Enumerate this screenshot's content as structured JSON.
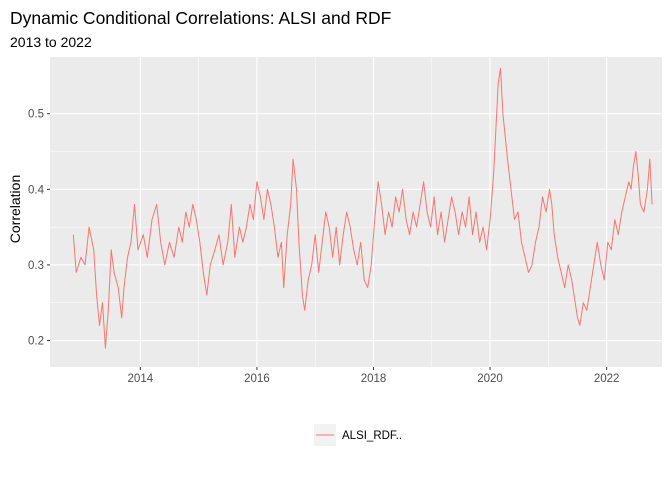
{
  "chart_data": {
    "type": "line",
    "title": "Dynamic Conditional Correlations: ALSI and RDF",
    "subtitle": "2013 to 2022",
    "xlabel": "",
    "ylabel": "Correlation",
    "xlim": [
      2012.45,
      2022.95
    ],
    "ylim": [
      0.165,
      0.575
    ],
    "x_ticks": [
      2014,
      2016,
      2018,
      2020,
      2022
    ],
    "x_tick_labels": [
      "2014",
      "2016",
      "2018",
      "2020",
      "2022"
    ],
    "y_ticks": [
      0.2,
      0.3,
      0.4,
      0.5
    ],
    "y_tick_labels": [
      "0.2",
      "0.3",
      "0.4",
      "0.5"
    ],
    "grid": true,
    "legend_position": "bottom",
    "series": [
      {
        "name": "ALSI_RDF..",
        "color": "#f8766d",
        "points": [
          [
            2012.85,
            0.34
          ],
          [
            2012.9,
            0.29
          ],
          [
            2012.98,
            0.31
          ],
          [
            2013.05,
            0.3
          ],
          [
            2013.12,
            0.35
          ],
          [
            2013.2,
            0.32
          ],
          [
            2013.25,
            0.26
          ],
          [
            2013.3,
            0.22
          ],
          [
            2013.35,
            0.25
          ],
          [
            2013.4,
            0.19
          ],
          [
            2013.45,
            0.24
          ],
          [
            2013.5,
            0.32
          ],
          [
            2013.55,
            0.29
          ],
          [
            2013.62,
            0.27
          ],
          [
            2013.68,
            0.23
          ],
          [
            2013.72,
            0.27
          ],
          [
            2013.78,
            0.31
          ],
          [
            2013.84,
            0.33
          ],
          [
            2013.9,
            0.38
          ],
          [
            2013.96,
            0.32
          ],
          [
            2014.05,
            0.34
          ],
          [
            2014.12,
            0.31
          ],
          [
            2014.2,
            0.36
          ],
          [
            2014.28,
            0.38
          ],
          [
            2014.35,
            0.33
          ],
          [
            2014.42,
            0.3
          ],
          [
            2014.5,
            0.33
          ],
          [
            2014.58,
            0.31
          ],
          [
            2014.66,
            0.35
          ],
          [
            2014.72,
            0.33
          ],
          [
            2014.78,
            0.37
          ],
          [
            2014.84,
            0.35
          ],
          [
            2014.9,
            0.38
          ],
          [
            2014.96,
            0.36
          ],
          [
            2015.02,
            0.33
          ],
          [
            2015.08,
            0.29
          ],
          [
            2015.14,
            0.26
          ],
          [
            2015.2,
            0.3
          ],
          [
            2015.28,
            0.32
          ],
          [
            2015.35,
            0.34
          ],
          [
            2015.42,
            0.3
          ],
          [
            2015.5,
            0.33
          ],
          [
            2015.56,
            0.38
          ],
          [
            2015.62,
            0.31
          ],
          [
            2015.7,
            0.35
          ],
          [
            2015.76,
            0.33
          ],
          [
            2015.82,
            0.35
          ],
          [
            2015.88,
            0.38
          ],
          [
            2015.94,
            0.36
          ],
          [
            2016.0,
            0.41
          ],
          [
            2016.06,
            0.39
          ],
          [
            2016.12,
            0.36
          ],
          [
            2016.18,
            0.4
          ],
          [
            2016.24,
            0.38
          ],
          [
            2016.3,
            0.35
          ],
          [
            2016.36,
            0.31
          ],
          [
            2016.42,
            0.33
          ],
          [
            2016.46,
            0.27
          ],
          [
            2016.52,
            0.34
          ],
          [
            2016.58,
            0.38
          ],
          [
            2016.62,
            0.44
          ],
          [
            2016.68,
            0.4
          ],
          [
            2016.72,
            0.33
          ],
          [
            2016.78,
            0.26
          ],
          [
            2016.82,
            0.24
          ],
          [
            2016.88,
            0.28
          ],
          [
            2016.94,
            0.3
          ],
          [
            2017.0,
            0.34
          ],
          [
            2017.06,
            0.29
          ],
          [
            2017.12,
            0.33
          ],
          [
            2017.18,
            0.37
          ],
          [
            2017.24,
            0.35
          ],
          [
            2017.3,
            0.31
          ],
          [
            2017.36,
            0.35
          ],
          [
            2017.42,
            0.3
          ],
          [
            2017.48,
            0.34
          ],
          [
            2017.54,
            0.37
          ],
          [
            2017.6,
            0.35
          ],
          [
            2017.66,
            0.32
          ],
          [
            2017.72,
            0.3
          ],
          [
            2017.78,
            0.33
          ],
          [
            2017.84,
            0.28
          ],
          [
            2017.9,
            0.27
          ],
          [
            2017.96,
            0.3
          ],
          [
            2018.02,
            0.36
          ],
          [
            2018.08,
            0.41
          ],
          [
            2018.14,
            0.38
          ],
          [
            2018.2,
            0.34
          ],
          [
            2018.26,
            0.37
          ],
          [
            2018.32,
            0.35
          ],
          [
            2018.38,
            0.39
          ],
          [
            2018.44,
            0.37
          ],
          [
            2018.5,
            0.4
          ],
          [
            2018.56,
            0.36
          ],
          [
            2018.62,
            0.34
          ],
          [
            2018.68,
            0.37
          ],
          [
            2018.74,
            0.35
          ],
          [
            2018.8,
            0.38
          ],
          [
            2018.86,
            0.41
          ],
          [
            2018.92,
            0.37
          ],
          [
            2018.98,
            0.35
          ],
          [
            2019.04,
            0.39
          ],
          [
            2019.1,
            0.34
          ],
          [
            2019.16,
            0.37
          ],
          [
            2019.22,
            0.33
          ],
          [
            2019.28,
            0.36
          ],
          [
            2019.34,
            0.39
          ],
          [
            2019.4,
            0.37
          ],
          [
            2019.46,
            0.34
          ],
          [
            2019.52,
            0.37
          ],
          [
            2019.58,
            0.35
          ],
          [
            2019.64,
            0.39
          ],
          [
            2019.7,
            0.34
          ],
          [
            2019.76,
            0.37
          ],
          [
            2019.82,
            0.33
          ],
          [
            2019.88,
            0.35
          ],
          [
            2019.94,
            0.32
          ],
          [
            2020.0,
            0.36
          ],
          [
            2020.06,
            0.42
          ],
          [
            2020.1,
            0.48
          ],
          [
            2020.14,
            0.54
          ],
          [
            2020.18,
            0.56
          ],
          [
            2020.22,
            0.5
          ],
          [
            2020.26,
            0.47
          ],
          [
            2020.3,
            0.44
          ],
          [
            2020.36,
            0.4
          ],
          [
            2020.42,
            0.36
          ],
          [
            2020.48,
            0.37
          ],
          [
            2020.54,
            0.33
          ],
          [
            2020.6,
            0.31
          ],
          [
            2020.66,
            0.29
          ],
          [
            2020.72,
            0.3
          ],
          [
            2020.78,
            0.33
          ],
          [
            2020.84,
            0.35
          ],
          [
            2020.9,
            0.39
          ],
          [
            2020.96,
            0.37
          ],
          [
            2021.02,
            0.4
          ],
          [
            2021.06,
            0.38
          ],
          [
            2021.1,
            0.34
          ],
          [
            2021.16,
            0.31
          ],
          [
            2021.22,
            0.29
          ],
          [
            2021.28,
            0.27
          ],
          [
            2021.34,
            0.3
          ],
          [
            2021.4,
            0.28
          ],
          [
            2021.46,
            0.25
          ],
          [
            2021.5,
            0.23
          ],
          [
            2021.54,
            0.22
          ],
          [
            2021.6,
            0.25
          ],
          [
            2021.66,
            0.24
          ],
          [
            2021.72,
            0.27
          ],
          [
            2021.78,
            0.3
          ],
          [
            2021.84,
            0.33
          ],
          [
            2021.9,
            0.3
          ],
          [
            2021.96,
            0.28
          ],
          [
            2022.02,
            0.33
          ],
          [
            2022.08,
            0.32
          ],
          [
            2022.14,
            0.36
          ],
          [
            2022.2,
            0.34
          ],
          [
            2022.26,
            0.37
          ],
          [
            2022.32,
            0.39
          ],
          [
            2022.38,
            0.41
          ],
          [
            2022.42,
            0.4
          ],
          [
            2022.46,
            0.43
          ],
          [
            2022.5,
            0.45
          ],
          [
            2022.54,
            0.42
          ],
          [
            2022.58,
            0.38
          ],
          [
            2022.64,
            0.37
          ],
          [
            2022.7,
            0.4
          ],
          [
            2022.74,
            0.44
          ],
          [
            2022.78,
            0.38
          ]
        ]
      }
    ]
  }
}
